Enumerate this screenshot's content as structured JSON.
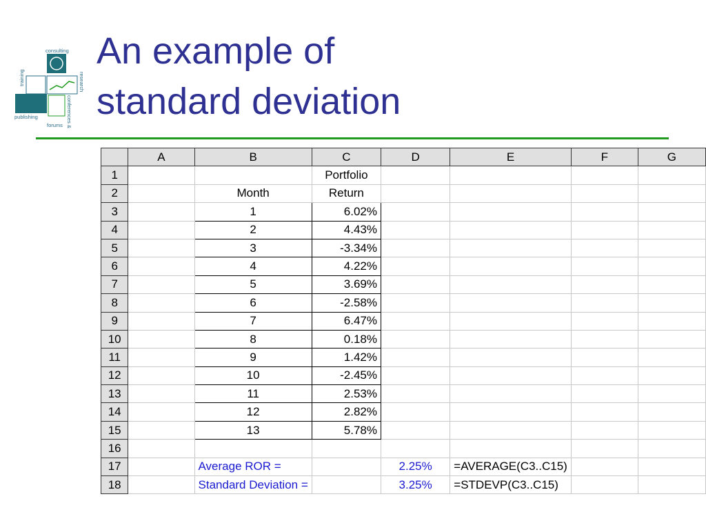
{
  "title": [
    "An example of",
    "standard deviation"
  ],
  "logo": {
    "labels": [
      "consulting",
      "training",
      "research",
      "conferences &",
      "publishing",
      "forums"
    ]
  },
  "table": {
    "columns": [
      "A",
      "B",
      "C",
      "D",
      "E",
      "F",
      "G"
    ],
    "rows": [
      {
        "number": "1",
        "C": "Portfolio"
      },
      {
        "number": "2",
        "B": "Month",
        "C": "Return"
      },
      {
        "number": "3",
        "B": "1",
        "C": "6.02%"
      },
      {
        "number": "4",
        "B": "2",
        "C": "4.43%"
      },
      {
        "number": "5",
        "B": "3",
        "C": "-3.34%"
      },
      {
        "number": "6",
        "B": "4",
        "C": "4.22%"
      },
      {
        "number": "7",
        "B": "5",
        "C": "3.69%"
      },
      {
        "number": "8",
        "B": "6",
        "C": "-2.58%"
      },
      {
        "number": "9",
        "B": "7",
        "C": "6.47%"
      },
      {
        "number": "10",
        "B": "8",
        "C": "0.18%"
      },
      {
        "number": "11",
        "B": "9",
        "C": "1.42%"
      },
      {
        "number": "12",
        "B": "10",
        "C": "-2.45%"
      },
      {
        "number": "13",
        "B": "11",
        "C": "2.53%"
      },
      {
        "number": "14",
        "B": "12",
        "C": "2.82%"
      },
      {
        "number": "15",
        "B": "13",
        "C": "5.78%"
      },
      {
        "number": "16"
      },
      {
        "number": "17",
        "B": "Average ROR =",
        "D": "2.25%",
        "E": "=AVERAGE(C3..C15)"
      },
      {
        "number": "18",
        "B": "Standard Deviation =",
        "D": "3.25%",
        "E": "=STDEVP(C3..C15)"
      }
    ]
  }
}
